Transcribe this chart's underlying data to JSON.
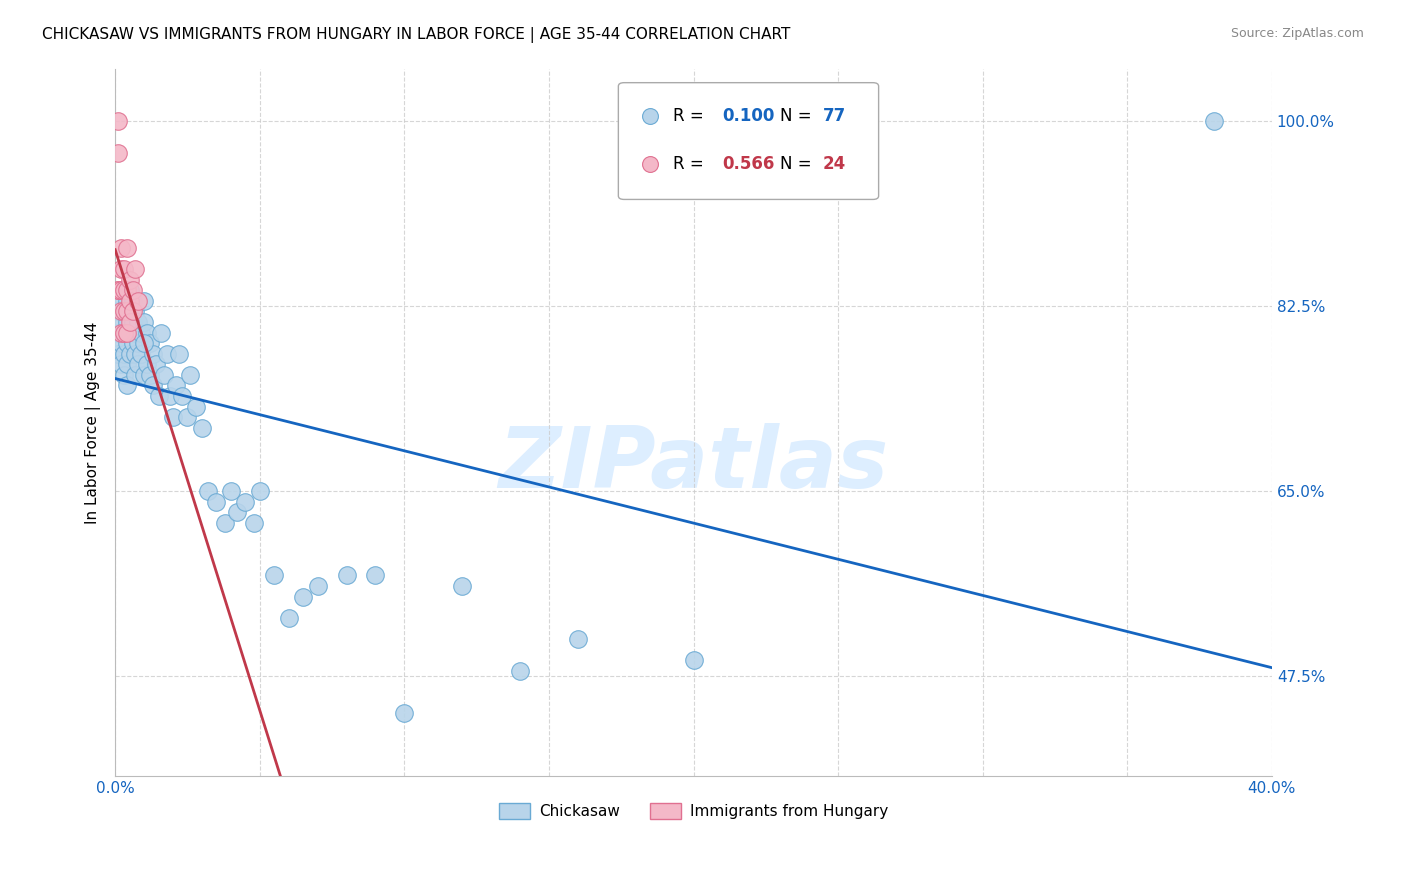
{
  "title": "CHICKASAW VS IMMIGRANTS FROM HUNGARY IN LABOR FORCE | AGE 35-44 CORRELATION CHART",
  "source": "Source: ZipAtlas.com",
  "ylabel": "In Labor Force | Age 35-44",
  "xlim": [
    0.0,
    0.4
  ],
  "ylim": [
    0.38,
    1.05
  ],
  "blue_color": "#b8d4ea",
  "blue_edge_color": "#6aaad4",
  "blue_line_color": "#1565c0",
  "pink_color": "#f4b8c8",
  "pink_edge_color": "#e07090",
  "pink_line_color": "#c0384a",
  "blue_r_color": "#1565c0",
  "pink_r_color": "#c0384a",
  "watermark": "ZIPatlas",
  "watermark_color": "#ddeeff",
  "grid_color": "#cccccc",
  "legend_blue_r": "0.100",
  "legend_blue_n": "77",
  "legend_pink_r": "0.566",
  "legend_pink_n": "24",
  "chickasaw_x": [
    0.001,
    0.001,
    0.001,
    0.002,
    0.002,
    0.002,
    0.002,
    0.003,
    0.003,
    0.003,
    0.003,
    0.003,
    0.004,
    0.004,
    0.004,
    0.004,
    0.004,
    0.005,
    0.005,
    0.005,
    0.005,
    0.006,
    0.006,
    0.006,
    0.007,
    0.007,
    0.007,
    0.007,
    0.008,
    0.008,
    0.008,
    0.009,
    0.009,
    0.01,
    0.01,
    0.01,
    0.011,
    0.011,
    0.012,
    0.012,
    0.013,
    0.013,
    0.014,
    0.015,
    0.016,
    0.017,
    0.018,
    0.019,
    0.02,
    0.021,
    0.022,
    0.023,
    0.025,
    0.026,
    0.028,
    0.03,
    0.032,
    0.035,
    0.038,
    0.04,
    0.042,
    0.045,
    0.048,
    0.05,
    0.055,
    0.06,
    0.065,
    0.07,
    0.08,
    0.09,
    0.1,
    0.12,
    0.14,
    0.16,
    0.2,
    0.38,
    0.01
  ],
  "chickasaw_y": [
    0.82,
    0.8,
    0.78,
    0.83,
    0.81,
    0.79,
    0.77,
    0.84,
    0.82,
    0.8,
    0.78,
    0.76,
    0.83,
    0.81,
    0.79,
    0.77,
    0.75,
    0.84,
    0.82,
    0.8,
    0.78,
    0.83,
    0.81,
    0.79,
    0.82,
    0.8,
    0.78,
    0.76,
    0.81,
    0.79,
    0.77,
    0.8,
    0.78,
    0.83,
    0.81,
    0.76,
    0.8,
    0.77,
    0.79,
    0.76,
    0.78,
    0.75,
    0.77,
    0.74,
    0.8,
    0.76,
    0.78,
    0.74,
    0.72,
    0.75,
    0.78,
    0.74,
    0.72,
    0.76,
    0.73,
    0.71,
    0.65,
    0.64,
    0.62,
    0.65,
    0.63,
    0.64,
    0.62,
    0.65,
    0.57,
    0.53,
    0.55,
    0.56,
    0.57,
    0.57,
    0.44,
    0.56,
    0.48,
    0.51,
    0.49,
    1.0,
    0.79
  ],
  "hungary_x": [
    0.001,
    0.001,
    0.001,
    0.001,
    0.002,
    0.002,
    0.002,
    0.002,
    0.002,
    0.003,
    0.003,
    0.003,
    0.003,
    0.004,
    0.004,
    0.004,
    0.004,
    0.005,
    0.005,
    0.005,
    0.006,
    0.006,
    0.007,
    0.008
  ],
  "hungary_y": [
    0.84,
    1.0,
    0.97,
    0.84,
    0.88,
    0.86,
    0.84,
    0.82,
    0.8,
    0.86,
    0.84,
    0.82,
    0.8,
    0.88,
    0.84,
    0.82,
    0.8,
    0.85,
    0.83,
    0.81,
    0.84,
    0.82,
    0.86,
    0.83
  ]
}
